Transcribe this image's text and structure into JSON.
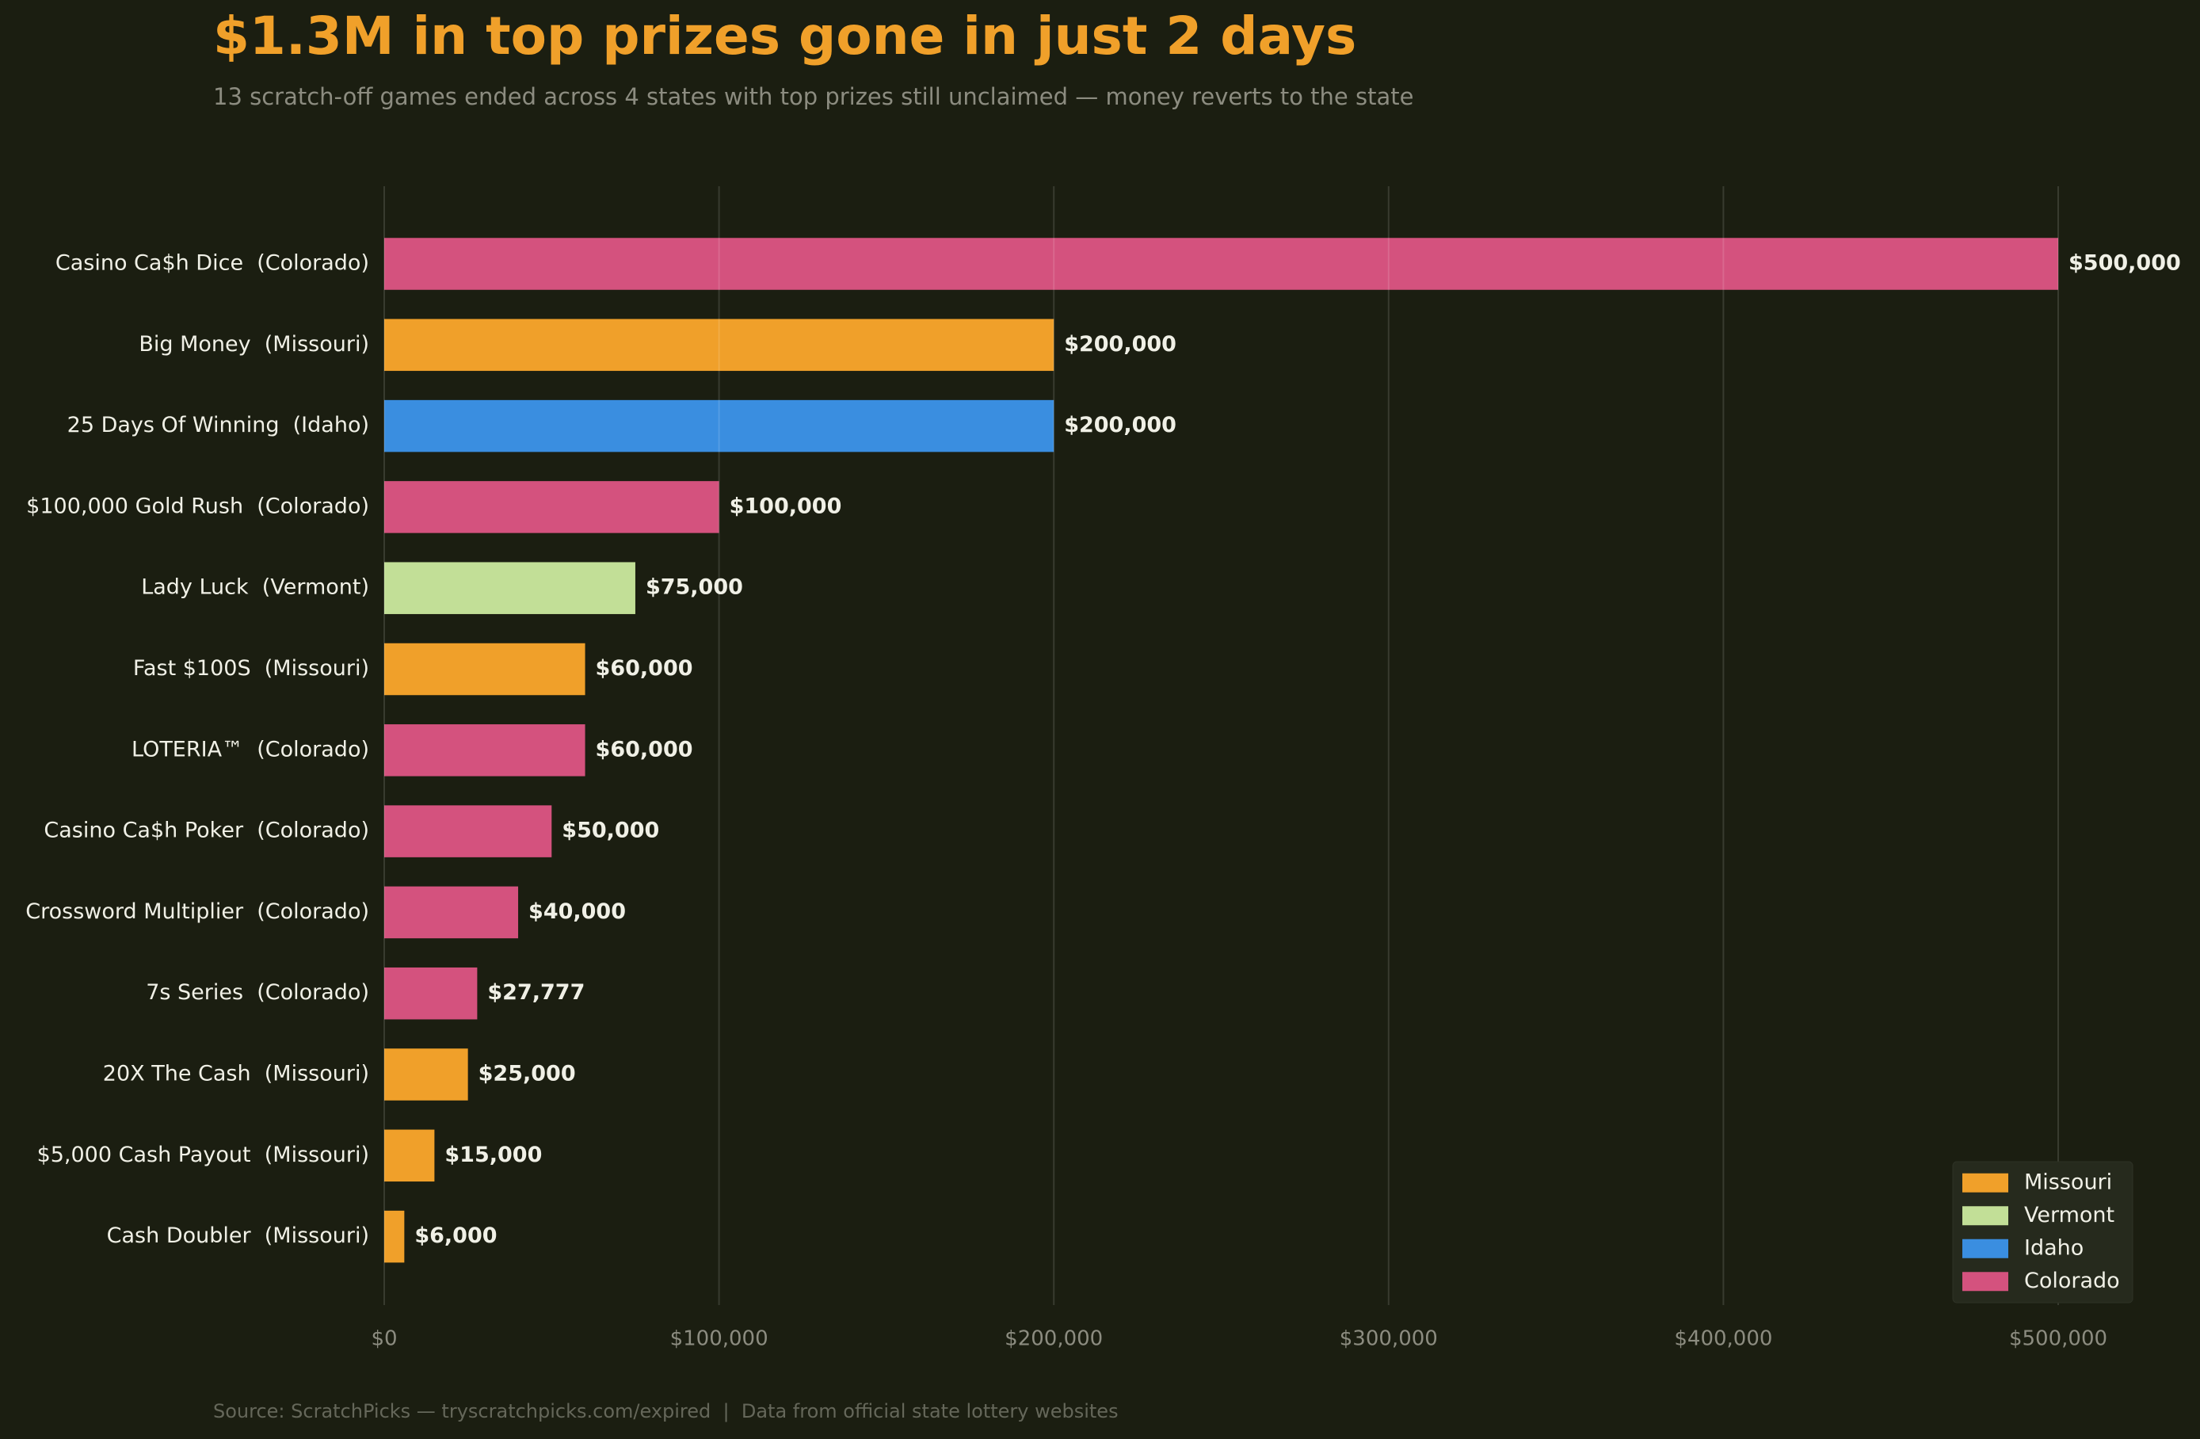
{
  "chart_data": {
    "type": "barh",
    "title": "$1.3M in top prizes gone in just 2 days",
    "subtitle": "13 scratch-off games ended across 4 states with top prizes still unclaimed — money reverts to the state",
    "source": "Source: ScratchPicks — tryscratchpicks.com/expired  |  Data from official state lottery websites",
    "categories": [
      "Casino Ca$h Dice  (Colorado)",
      "Big Money  (Missouri)",
      "25 Days Of Winning  (Idaho)",
      "$100,000 Gold Rush  (Colorado)",
      "Lady Luck  (Vermont)",
      "Fast $100S  (Missouri)",
      "LOTERIA™  (Colorado)",
      "Casino Ca$h Poker  (Colorado)",
      "Crossword Multiplier  (Colorado)",
      "7s Series  (Colorado)",
      "20X The Cash  (Missouri)",
      "$5,000 Cash Payout  (Missouri)",
      "Cash Doubler  (Missouri)"
    ],
    "series": [
      {
        "name": "Missouri",
        "color": "#f0a02a",
        "values": [
          null,
          200000,
          null,
          null,
          null,
          60000,
          null,
          null,
          null,
          null,
          25000,
          15000,
          6000
        ],
        "value_labels": [
          null,
          "$200,000",
          null,
          null,
          null,
          "$60,000",
          null,
          null,
          null,
          null,
          "$25,000",
          "$15,000",
          "$6,000"
        ]
      },
      {
        "name": "Vermont",
        "color": "#c2df97",
        "values": [
          null,
          null,
          null,
          null,
          75000,
          null,
          null,
          null,
          null,
          null,
          null,
          null,
          null
        ],
        "value_labels": [
          null,
          null,
          null,
          null,
          "$75,000",
          null,
          null,
          null,
          null,
          null,
          null,
          null,
          null
        ]
      },
      {
        "name": "Idaho",
        "color": "#3a8ee0",
        "values": [
          null,
          null,
          200000,
          null,
          null,
          null,
          null,
          null,
          null,
          null,
          null,
          null,
          null
        ],
        "value_labels": [
          null,
          null,
          "$200,000",
          null,
          null,
          null,
          null,
          null,
          null,
          null,
          null,
          null,
          null
        ]
      },
      {
        "name": "Colorado",
        "color": "#d4527e",
        "values": [
          500000,
          null,
          null,
          100000,
          null,
          null,
          60000,
          50000,
          40000,
          27777,
          null,
          null,
          null
        ],
        "value_labels": [
          "$500,000",
          null,
          null,
          "$100,000",
          null,
          null,
          "$60,000",
          "$50,000",
          "$40,000",
          "$27,777",
          null,
          null,
          null
        ]
      }
    ],
    "xlim": [
      0,
      525000
    ],
    "xticks": [
      {
        "value": 0,
        "label": "$0"
      },
      {
        "value": 100000,
        "label": "$100,000"
      },
      {
        "value": 200000,
        "label": "$200,000"
      },
      {
        "value": 300000,
        "label": "$300,000"
      },
      {
        "value": 400000,
        "label": "$400,000"
      },
      {
        "value": 500000,
        "label": "$500,000"
      }
    ],
    "grid": true,
    "legend": "lower right"
  }
}
